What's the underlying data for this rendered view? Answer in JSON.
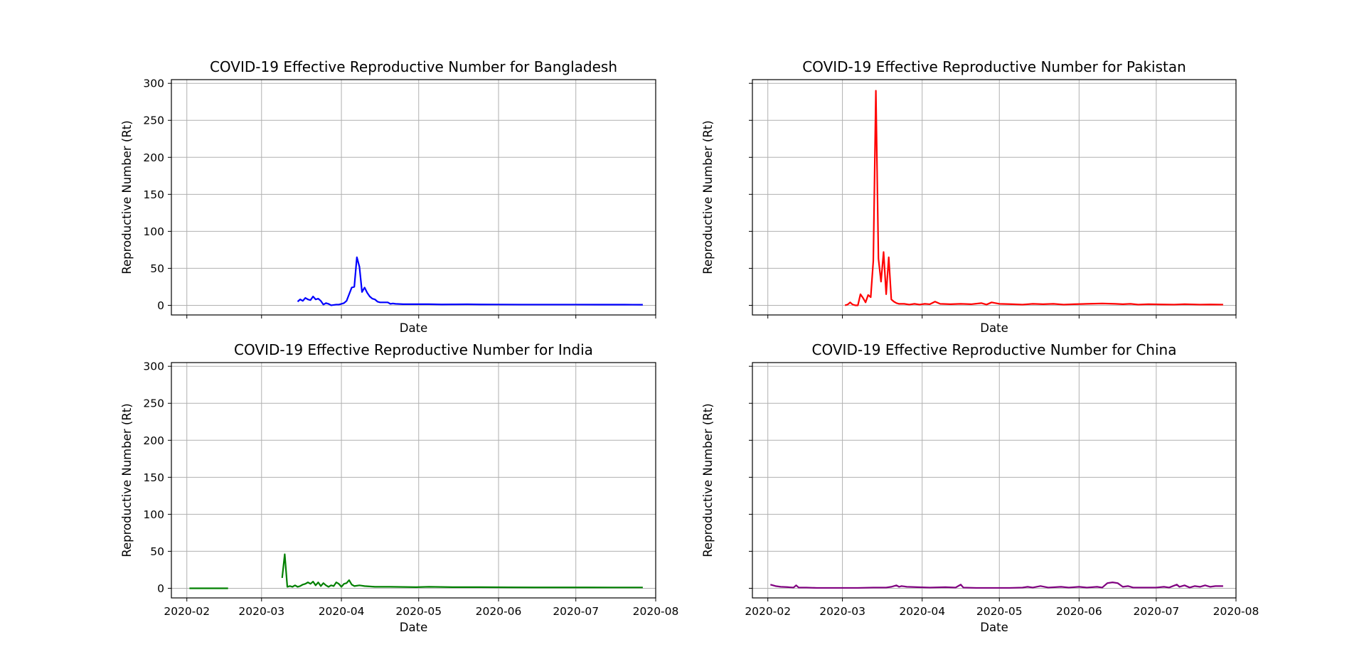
{
  "chart_data": [
    {
      "type": "line",
      "title": "COVID-19 Effective Reproductive Number for Bangladesh",
      "xlabel": "Date",
      "ylabel": "Reproductive Number (Rt)",
      "grid": true,
      "ylim": [
        -13,
        305
      ],
      "xlim": [
        "2020-01-26",
        "2020-08-01"
      ],
      "xticks": [
        "2020-02",
        "2020-03",
        "2020-04",
        "2020-05",
        "2020-06",
        "2020-07",
        "2020-08"
      ],
      "xtick_labels_visible": false,
      "yticks": [
        0,
        50,
        100,
        150,
        200,
        250,
        300
      ],
      "ytick_labels_visible": true,
      "series": [
        {
          "color": "#0000ff",
          "points": [
            [
              "2020-03-15",
              5
            ],
            [
              "2020-03-16",
              8
            ],
            [
              "2020-03-17",
              6
            ],
            [
              "2020-03-18",
              10
            ],
            [
              "2020-03-19",
              8
            ],
            [
              "2020-03-20",
              7
            ],
            [
              "2020-03-21",
              12
            ],
            [
              "2020-03-22",
              8
            ],
            [
              "2020-03-23",
              9
            ],
            [
              "2020-03-24",
              6
            ],
            [
              "2020-03-25",
              1
            ],
            [
              "2020-03-26",
              3
            ],
            [
              "2020-03-27",
              2
            ],
            [
              "2020-03-28",
              0
            ],
            [
              "2020-03-29",
              0.5
            ],
            [
              "2020-03-30",
              1
            ],
            [
              "2020-03-31",
              1
            ],
            [
              "2020-04-01",
              2
            ],
            [
              "2020-04-02",
              3
            ],
            [
              "2020-04-03",
              6
            ],
            [
              "2020-04-04",
              15
            ],
            [
              "2020-04-05",
              24
            ],
            [
              "2020-04-06",
              25
            ],
            [
              "2020-04-07",
              65
            ],
            [
              "2020-04-08",
              52
            ],
            [
              "2020-04-09",
              18
            ],
            [
              "2020-04-10",
              24
            ],
            [
              "2020-04-11",
              17
            ],
            [
              "2020-04-12",
              12
            ],
            [
              "2020-04-13",
              9
            ],
            [
              "2020-04-14",
              8
            ],
            [
              "2020-04-15",
              5
            ],
            [
              "2020-04-16",
              4
            ],
            [
              "2020-04-17",
              4
            ],
            [
              "2020-04-18",
              4
            ],
            [
              "2020-04-19",
              4
            ],
            [
              "2020-04-20",
              2
            ],
            [
              "2020-04-21",
              2.5
            ],
            [
              "2020-04-22",
              2
            ],
            [
              "2020-04-25",
              1.5
            ],
            [
              "2020-05-01",
              1.5
            ],
            [
              "2020-05-05",
              1.5
            ],
            [
              "2020-05-10",
              1.2
            ],
            [
              "2020-05-15",
              1.3
            ],
            [
              "2020-05-20",
              1.4
            ],
            [
              "2020-05-25",
              1.2
            ],
            [
              "2020-06-01",
              1.1
            ],
            [
              "2020-06-10",
              1
            ],
            [
              "2020-06-20",
              1
            ],
            [
              "2020-07-01",
              1
            ],
            [
              "2020-07-10",
              0.9
            ],
            [
              "2020-07-20",
              0.9
            ],
            [
              "2020-07-27",
              0.8
            ]
          ]
        }
      ]
    },
    {
      "type": "line",
      "title": "COVID-19 Effective Reproductive Number for Pakistan",
      "xlabel": "Date",
      "ylabel": "Reproductive Number (Rt)",
      "grid": true,
      "ylim": [
        -13,
        305
      ],
      "xlim": [
        "2020-01-26",
        "2020-08-01"
      ],
      "xticks": [
        "2020-02",
        "2020-03",
        "2020-04",
        "2020-05",
        "2020-06",
        "2020-07",
        "2020-08"
      ],
      "xtick_labels_visible": false,
      "yticks": [
        0,
        50,
        100,
        150,
        200,
        250,
        300
      ],
      "ytick_labels_visible": false,
      "series": [
        {
          "color": "#ff0000",
          "points": [
            [
              "2020-03-02",
              0
            ],
            [
              "2020-03-03",
              1
            ],
            [
              "2020-03-04",
              4
            ],
            [
              "2020-03-05",
              1
            ],
            [
              "2020-03-06",
              0
            ],
            [
              "2020-03-07",
              0
            ],
            [
              "2020-03-08",
              15
            ],
            [
              "2020-03-09",
              10
            ],
            [
              "2020-03-10",
              4
            ],
            [
              "2020-03-11",
              14
            ],
            [
              "2020-03-12",
              11
            ],
            [
              "2020-03-13",
              60
            ],
            [
              "2020-03-14",
              290
            ],
            [
              "2020-03-15",
              63
            ],
            [
              "2020-03-16",
              32
            ],
            [
              "2020-03-17",
              72
            ],
            [
              "2020-03-18",
              15
            ],
            [
              "2020-03-19",
              65
            ],
            [
              "2020-03-20",
              8
            ],
            [
              "2020-03-21",
              5
            ],
            [
              "2020-03-22",
              3
            ],
            [
              "2020-03-23",
              2
            ],
            [
              "2020-03-25",
              2
            ],
            [
              "2020-03-27",
              1
            ],
            [
              "2020-03-29",
              2
            ],
            [
              "2020-03-31",
              1
            ],
            [
              "2020-04-02",
              2
            ],
            [
              "2020-04-04",
              1.5
            ],
            [
              "2020-04-06",
              5
            ],
            [
              "2020-04-08",
              2
            ],
            [
              "2020-04-12",
              1.5
            ],
            [
              "2020-04-16",
              2
            ],
            [
              "2020-04-20",
              1.5
            ],
            [
              "2020-04-24",
              3
            ],
            [
              "2020-04-26",
              1
            ],
            [
              "2020-04-28",
              4
            ],
            [
              "2020-05-01",
              2
            ],
            [
              "2020-05-06",
              1.5
            ],
            [
              "2020-05-10",
              1
            ],
            [
              "2020-05-14",
              2
            ],
            [
              "2020-05-18",
              1.5
            ],
            [
              "2020-05-22",
              2
            ],
            [
              "2020-05-26",
              1
            ],
            [
              "2020-05-30",
              1.5
            ],
            [
              "2020-06-04",
              2
            ],
            [
              "2020-06-10",
              2.5
            ],
            [
              "2020-06-15",
              2
            ],
            [
              "2020-06-18",
              1.5
            ],
            [
              "2020-06-21",
              2
            ],
            [
              "2020-06-24",
              1
            ],
            [
              "2020-06-28",
              1.5
            ],
            [
              "2020-07-03",
              1.2
            ],
            [
              "2020-07-08",
              1
            ],
            [
              "2020-07-12",
              1.5
            ],
            [
              "2020-07-18",
              1
            ],
            [
              "2020-07-22",
              1.2
            ],
            [
              "2020-07-27",
              1
            ]
          ]
        }
      ]
    },
    {
      "type": "line",
      "title": "COVID-19 Effective Reproductive Number for India",
      "xlabel": "Date",
      "ylabel": "Reproductive Number (Rt)",
      "grid": true,
      "ylim": [
        -13,
        305
      ],
      "xlim": [
        "2020-01-26",
        "2020-08-01"
      ],
      "xticks": [
        "2020-02",
        "2020-03",
        "2020-04",
        "2020-05",
        "2020-06",
        "2020-07",
        "2020-08"
      ],
      "xtick_labels_visible": true,
      "yticks": [
        0,
        50,
        100,
        150,
        200,
        250,
        300
      ],
      "ytick_labels_visible": true,
      "series": [
        {
          "color": "#008000",
          "segments": [
            [
              [
                "2020-02-02",
                0
              ],
              [
                "2020-02-17",
                0
              ]
            ],
            [
              [
                "2020-03-09",
                14
              ],
              [
                "2020-03-10",
                46
              ],
              [
                "2020-03-11",
                2
              ],
              [
                "2020-03-12",
                3
              ],
              [
                "2020-03-13",
                2
              ],
              [
                "2020-03-14",
                4
              ],
              [
                "2020-03-15",
                2
              ],
              [
                "2020-03-16",
                3
              ],
              [
                "2020-03-17",
                5
              ],
              [
                "2020-03-18",
                6
              ],
              [
                "2020-03-19",
                8
              ],
              [
                "2020-03-20",
                6
              ],
              [
                "2020-03-21",
                9
              ],
              [
                "2020-03-22",
                4
              ],
              [
                "2020-03-23",
                8
              ],
              [
                "2020-03-24",
                3
              ],
              [
                "2020-03-25",
                7
              ],
              [
                "2020-03-26",
                4
              ],
              [
                "2020-03-27",
                2
              ],
              [
                "2020-03-28",
                4
              ],
              [
                "2020-03-29",
                3
              ],
              [
                "2020-03-30",
                8
              ],
              [
                "2020-03-31",
                6
              ],
              [
                "2020-04-01",
                2
              ],
              [
                "2020-04-02",
                6
              ],
              [
                "2020-04-03",
                7
              ],
              [
                "2020-04-04",
                11
              ],
              [
                "2020-04-05",
                5
              ],
              [
                "2020-04-06",
                3
              ],
              [
                "2020-04-08",
                4
              ],
              [
                "2020-04-10",
                3
              ],
              [
                "2020-04-14",
                2
              ],
              [
                "2020-04-20",
                2
              ],
              [
                "2020-04-30",
                1.5
              ],
              [
                "2020-05-05",
                2
              ],
              [
                "2020-05-15",
                1.5
              ],
              [
                "2020-05-25",
                1.5
              ],
              [
                "2020-06-05",
                1.3
              ],
              [
                "2020-06-15",
                1.2
              ],
              [
                "2020-06-25",
                1.2
              ],
              [
                "2020-07-05",
                1.2
              ],
              [
                "2020-07-15",
                1.1
              ],
              [
                "2020-07-27",
                1.1
              ]
            ]
          ]
        }
      ]
    },
    {
      "type": "line",
      "title": "COVID-19 Effective Reproductive Number for China",
      "xlabel": "Date",
      "ylabel": "Reproductive Number (Rt)",
      "grid": true,
      "ylim": [
        -13,
        305
      ],
      "xlim": [
        "2020-01-26",
        "2020-08-01"
      ],
      "xticks": [
        "2020-02",
        "2020-03",
        "2020-04",
        "2020-05",
        "2020-06",
        "2020-07",
        "2020-08"
      ],
      "xtick_labels_visible": true,
      "yticks": [
        0,
        50,
        100,
        150,
        200,
        250,
        300
      ],
      "ytick_labels_visible": false,
      "series": [
        {
          "color": "#800080",
          "points": [
            [
              "2020-02-02",
              5
            ],
            [
              "2020-02-04",
              3
            ],
            [
              "2020-02-06",
              2
            ],
            [
              "2020-02-09",
              1.5
            ],
            [
              "2020-02-11",
              1
            ],
            [
              "2020-02-12",
              4
            ],
            [
              "2020-02-13",
              1
            ],
            [
              "2020-02-16",
              1
            ],
            [
              "2020-02-20",
              0.5
            ],
            [
              "2020-02-25",
              0.5
            ],
            [
              "2020-03-01",
              0.5
            ],
            [
              "2020-03-07",
              0.5
            ],
            [
              "2020-03-13",
              1
            ],
            [
              "2020-03-18",
              1
            ],
            [
              "2020-03-20",
              2
            ],
            [
              "2020-03-22",
              4
            ],
            [
              "2020-03-23",
              2
            ],
            [
              "2020-03-24",
              3
            ],
            [
              "2020-03-26",
              2
            ],
            [
              "2020-03-30",
              1.5
            ],
            [
              "2020-04-04",
              1
            ],
            [
              "2020-04-10",
              1.5
            ],
            [
              "2020-04-14",
              1
            ],
            [
              "2020-04-16",
              5
            ],
            [
              "2020-04-17",
              1
            ],
            [
              "2020-04-22",
              0.5
            ],
            [
              "2020-04-28",
              0.5
            ],
            [
              "2020-05-05",
              0.5
            ],
            [
              "2020-05-10",
              1
            ],
            [
              "2020-05-12",
              2
            ],
            [
              "2020-05-14",
              1
            ],
            [
              "2020-05-17",
              3
            ],
            [
              "2020-05-20",
              1
            ],
            [
              "2020-05-25",
              2
            ],
            [
              "2020-05-28",
              1
            ],
            [
              "2020-06-01",
              2
            ],
            [
              "2020-06-04",
              1
            ],
            [
              "2020-06-08",
              2
            ],
            [
              "2020-06-10",
              1
            ],
            [
              "2020-06-12",
              7
            ],
            [
              "2020-06-14",
              8
            ],
            [
              "2020-06-16",
              7
            ],
            [
              "2020-06-18",
              2
            ],
            [
              "2020-06-20",
              3
            ],
            [
              "2020-06-22",
              1
            ],
            [
              "2020-06-26",
              1
            ],
            [
              "2020-07-01",
              1
            ],
            [
              "2020-07-04",
              2
            ],
            [
              "2020-07-06",
              1
            ],
            [
              "2020-07-09",
              5
            ],
            [
              "2020-07-10",
              2
            ],
            [
              "2020-07-12",
              4
            ],
            [
              "2020-07-14",
              1
            ],
            [
              "2020-07-16",
              3
            ],
            [
              "2020-07-18",
              2
            ],
            [
              "2020-07-20",
              4
            ],
            [
              "2020-07-22",
              2
            ],
            [
              "2020-07-24",
              3
            ],
            [
              "2020-07-27",
              3
            ]
          ]
        }
      ]
    }
  ]
}
